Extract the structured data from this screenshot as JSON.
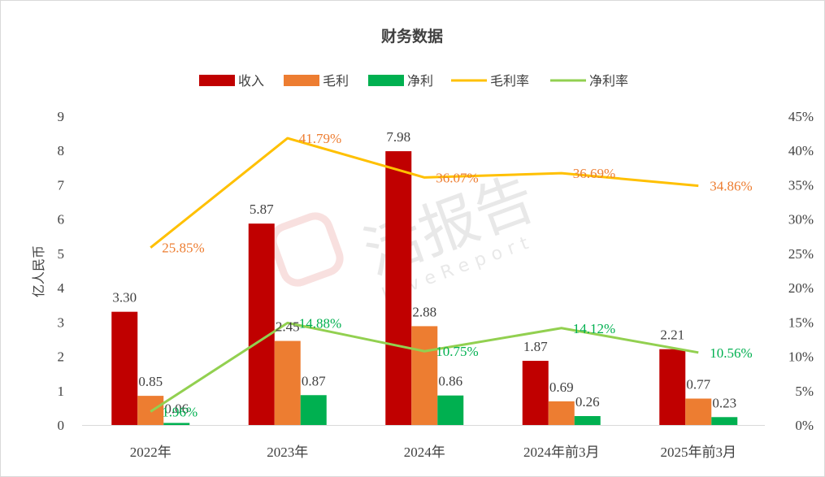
{
  "chart_data": {
    "type": "bar",
    "title": "财务数据",
    "ylabel": "亿人民币",
    "xlabel": "",
    "ylim": [
      0,
      9
    ],
    "y2lim": [
      0,
      45
    ],
    "y_ticks": [
      "0",
      "1",
      "2",
      "3",
      "4",
      "5",
      "6",
      "7",
      "8",
      "9"
    ],
    "y2_ticks": [
      "0%",
      "5%",
      "10%",
      "15%",
      "20%",
      "25%",
      "30%",
      "35%",
      "40%",
      "45%"
    ],
    "categories": [
      "2022年",
      "2023年",
      "2024年",
      "2024年前3月",
      "2025年前3月"
    ],
    "series": [
      {
        "name": "收入",
        "kind": "bar",
        "color": "#C00000",
        "values": [
          3.3,
          5.87,
          7.98,
          1.87,
          2.21
        ],
        "labels": [
          "3.30",
          "5.87",
          "7.98",
          "1.87",
          "2.21"
        ]
      },
      {
        "name": "毛利",
        "kind": "bar",
        "color": "#ED7D31",
        "values": [
          0.85,
          2.45,
          2.88,
          0.69,
          0.77
        ],
        "labels": [
          "0.85",
          "2.45",
          "2.88",
          "0.69",
          "0.77"
        ]
      },
      {
        "name": "净利",
        "kind": "bar",
        "color": "#00B050",
        "values": [
          0.06,
          0.87,
          0.86,
          0.26,
          0.23
        ],
        "labels": [
          "0.06",
          "0.87",
          "0.86",
          "0.26",
          "0.23"
        ]
      },
      {
        "name": "毛利率",
        "kind": "line",
        "axis": "right",
        "color": "#FFC000",
        "label_color": "#ED7D31",
        "values": [
          25.85,
          41.79,
          36.07,
          36.69,
          34.86
        ],
        "labels": [
          "25.85%",
          "41.79%",
          "36.07%",
          "36.69%",
          "34.86%"
        ]
      },
      {
        "name": "净利率",
        "kind": "line",
        "axis": "right",
        "color": "#92D050",
        "label_color": "#00B050",
        "values": [
          1.96,
          14.88,
          10.75,
          14.12,
          10.56
        ],
        "labels": [
          "1.96%",
          "14.88%",
          "10.75%",
          "14.12%",
          "10.56%"
        ]
      }
    ],
    "legend": "top-center",
    "grid": false
  },
  "watermark": {
    "text": "活报告",
    "subtext": "LiveReport",
    "color": "#d9534f"
  }
}
